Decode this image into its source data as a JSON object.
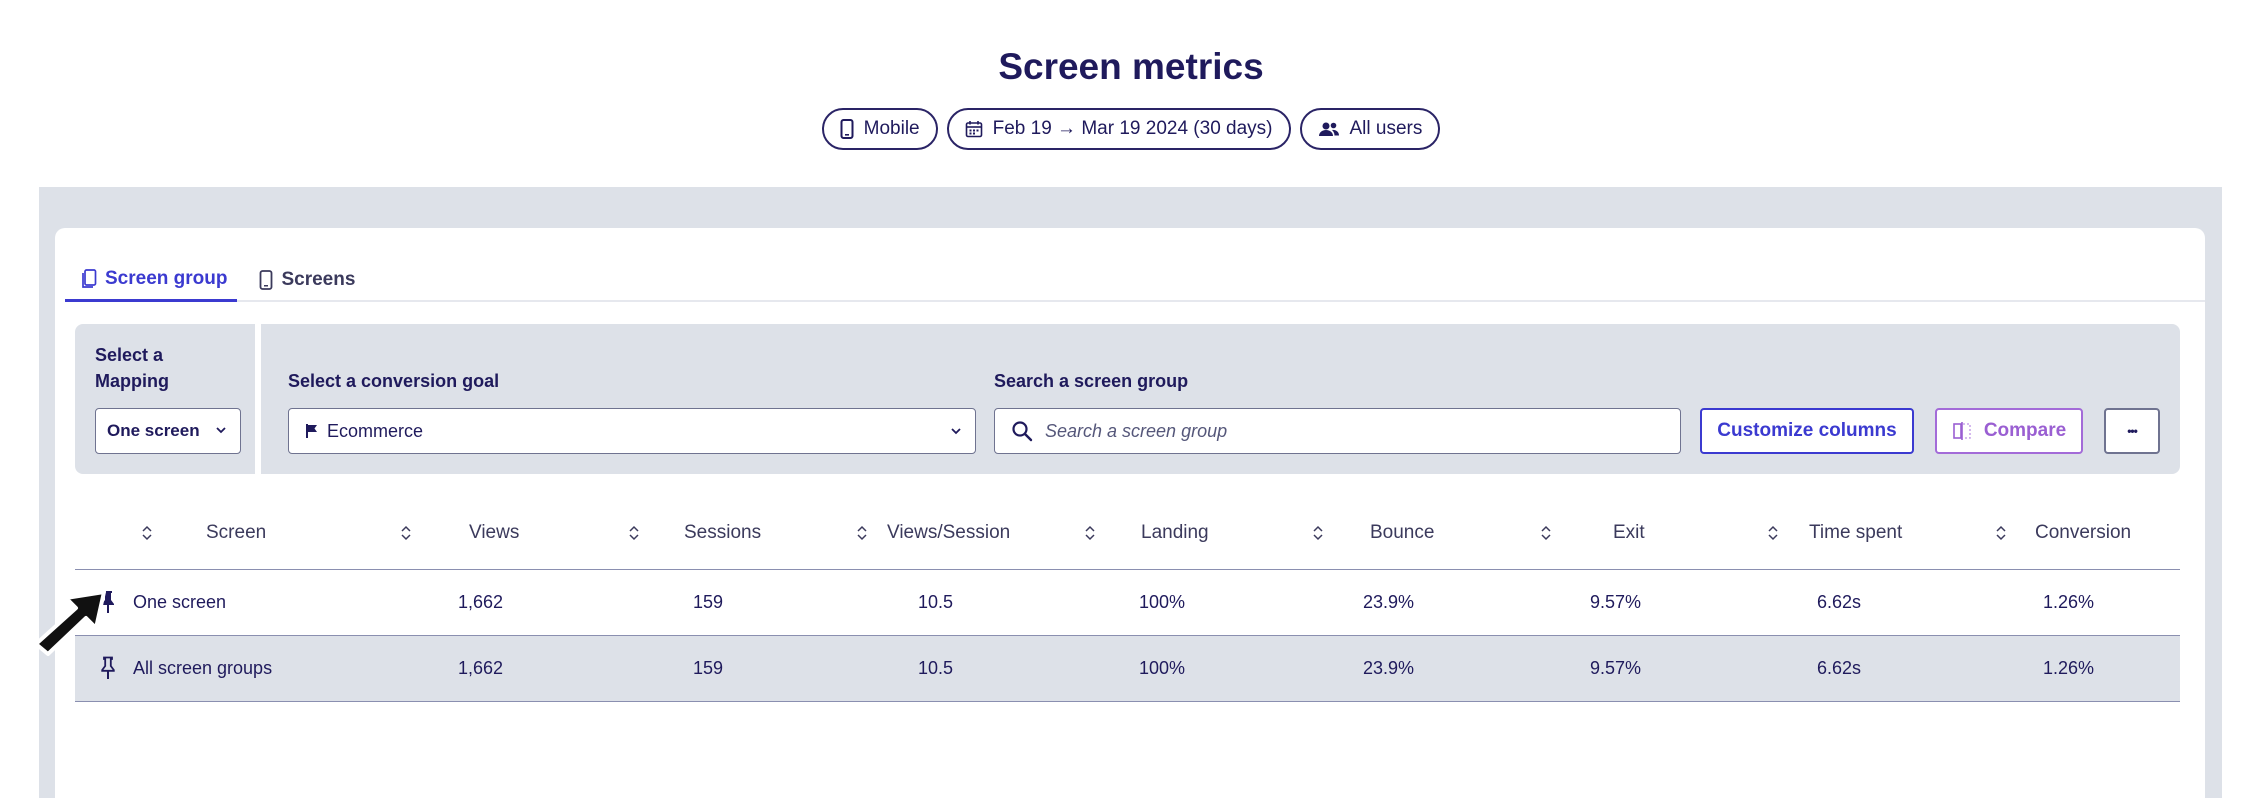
{
  "title": "Screen metrics",
  "filters": {
    "device": {
      "label": "Mobile",
      "icon": "mobile-icon"
    },
    "date_range": {
      "label": "Feb 19 → Mar 19 2024 (30 days)",
      "icon": "calendar-icon"
    },
    "segment": {
      "label": "All users",
      "icon": "users-icon"
    }
  },
  "tabs": [
    {
      "label": "Screen group",
      "icon": "screen-group-icon",
      "active": true
    },
    {
      "label": "Screens",
      "icon": "mobile-icon",
      "active": false
    }
  ],
  "toolbar": {
    "mapping_label": "Select a Mapping",
    "mapping_value": "One screen",
    "goal_label": "Select a conversion goal",
    "goal_value": "Ecommerce",
    "goal_icon": "flag-icon",
    "search_label": "Search a screen group",
    "search_placeholder": "Search a screen group",
    "customize_label": "Customize columns",
    "compare_label": "Compare",
    "more_label": "•••"
  },
  "table": {
    "columns": [
      "Screen",
      "Views",
      "Sessions",
      "Views/Session",
      "Landing",
      "Bounce",
      "Exit",
      "Time spent",
      "Conversion"
    ],
    "rows": [
      {
        "screen": "One screen",
        "views": "1,662",
        "sessions": "159",
        "views_session": "10.5",
        "landing": "100%",
        "bounce": "23.9%",
        "exit": "9.57%",
        "time_spent": "6.62s",
        "conversion": "1.26%",
        "pinned": true
      },
      {
        "screen": "All screen groups",
        "views": "1,662",
        "sessions": "159",
        "views_session": "10.5",
        "landing": "100%",
        "bounce": "23.9%",
        "exit": "9.57%",
        "time_spent": "6.62s",
        "conversion": "1.26%",
        "pinned": false
      }
    ]
  },
  "colors": {
    "primary_text": "#1f1a5c",
    "accent": "#3b3ad0",
    "compare": "#9a5fd2",
    "panel": "#dde1e8"
  }
}
